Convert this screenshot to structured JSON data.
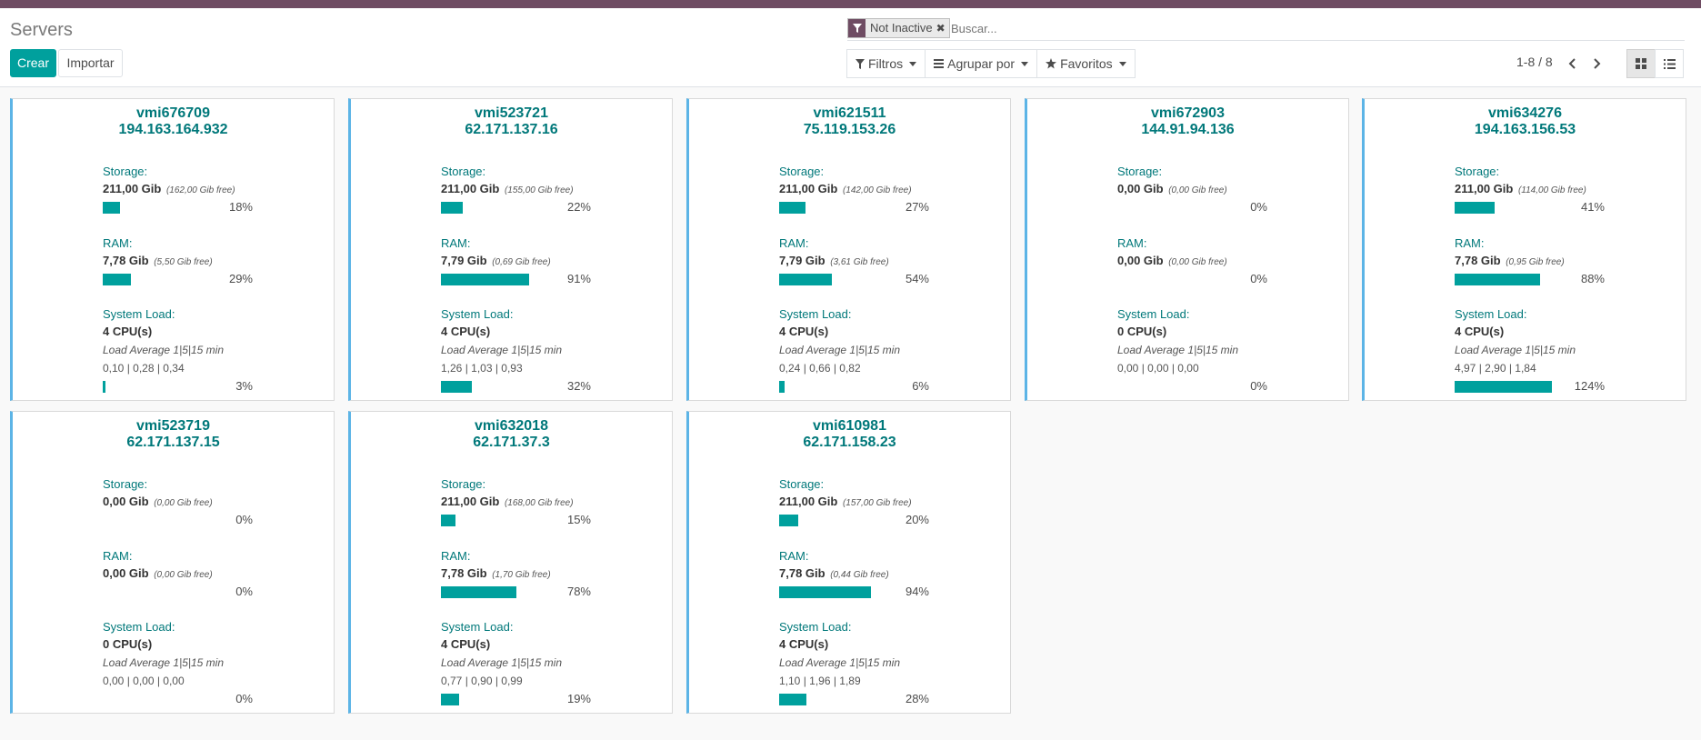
{
  "title": "Servers",
  "buttons": {
    "create": "Crear",
    "import": "Importar"
  },
  "search": {
    "facet": "Not Inactive",
    "placeholder": "Buscar..."
  },
  "filters": {
    "filters": "Filtros",
    "group_by": "Agrupar por",
    "favorites": "Favoritos"
  },
  "pager": {
    "range": "1-8 / 8"
  },
  "labels": {
    "storage": "Storage:",
    "ram": "RAM:",
    "system_load": "System Load:",
    "load_average": "Load Average 1|5|15 min"
  },
  "accent_color": "#00a09d",
  "servers": [
    {
      "name": "vmi676709",
      "ip": "194.163.164.932",
      "storage": "211,00 Gib",
      "storage_free": "(162,00 Gib free)",
      "storage_pct": 18,
      "storage_pct_label": "18%",
      "ram": "7,78 Gib",
      "ram_free": "(5,50 Gib free)",
      "ram_pct": 29,
      "ram_pct_label": "29%",
      "cpus": "4 CPU(s)",
      "load": "0,10 | 0,28 | 0,34",
      "load_pct": 3,
      "load_pct_label": "3%"
    },
    {
      "name": "vmi523721",
      "ip": "62.171.137.16",
      "storage": "211,00 Gib",
      "storage_free": "(155,00 Gib free)",
      "storage_pct": 22,
      "storage_pct_label": "22%",
      "ram": "7,79 Gib",
      "ram_free": "(0,69 Gib free)",
      "ram_pct": 91,
      "ram_pct_label": "91%",
      "cpus": "4 CPU(s)",
      "load": "1,26 | 1,03 | 0,93",
      "load_pct": 32,
      "load_pct_label": "32%"
    },
    {
      "name": "vmi621511",
      "ip": "75.119.153.26",
      "storage": "211,00 Gib",
      "storage_free": "(142,00 Gib free)",
      "storage_pct": 27,
      "storage_pct_label": "27%",
      "ram": "7,79 Gib",
      "ram_free": "(3,61 Gib free)",
      "ram_pct": 54,
      "ram_pct_label": "54%",
      "cpus": "4 CPU(s)",
      "load": "0,24 | 0,66 | 0,82",
      "load_pct": 6,
      "load_pct_label": "6%"
    },
    {
      "name": "vmi672903",
      "ip": "144.91.94.136",
      "storage": "0,00 Gib",
      "storage_free": "(0,00 Gib free)",
      "storage_pct": 0,
      "storage_pct_label": "0%",
      "ram": "0,00 Gib",
      "ram_free": "(0,00 Gib free)",
      "ram_pct": 0,
      "ram_pct_label": "0%",
      "cpus": "0 CPU(s)",
      "load": "0,00 | 0,00 | 0,00",
      "load_pct": 0,
      "load_pct_label": "0%"
    },
    {
      "name": "vmi634276",
      "ip": "194.163.156.53",
      "storage": "211,00 Gib",
      "storage_free": "(114,00 Gib free)",
      "storage_pct": 41,
      "storage_pct_label": "41%",
      "ram": "7,78 Gib",
      "ram_free": "(0,95 Gib free)",
      "ram_pct": 88,
      "ram_pct_label": "88%",
      "cpus": "4 CPU(s)",
      "load": "4,97 | 2,90 | 1,84",
      "load_pct": 124,
      "load_pct_label": "124%"
    },
    {
      "name": "vmi523719",
      "ip": "62.171.137.15",
      "storage": "0,00 Gib",
      "storage_free": "(0,00 Gib free)",
      "storage_pct": 0,
      "storage_pct_label": "0%",
      "ram": "0,00 Gib",
      "ram_free": "(0,00 Gib free)",
      "ram_pct": 0,
      "ram_pct_label": "0%",
      "cpus": "0 CPU(s)",
      "load": "0,00 | 0,00 | 0,00",
      "load_pct": 0,
      "load_pct_label": "0%"
    },
    {
      "name": "vmi632018",
      "ip": "62.171.37.3",
      "storage": "211,00 Gib",
      "storage_free": "(168,00 Gib free)",
      "storage_pct": 15,
      "storage_pct_label": "15%",
      "ram": "7,78 Gib",
      "ram_free": "(1,70 Gib free)",
      "ram_pct": 78,
      "ram_pct_label": "78%",
      "cpus": "4 CPU(s)",
      "load": "0,77 | 0,90 | 0,99",
      "load_pct": 19,
      "load_pct_label": "19%"
    },
    {
      "name": "vmi610981",
      "ip": "62.171.158.23",
      "storage": "211,00 Gib",
      "storage_free": "(157,00 Gib free)",
      "storage_pct": 20,
      "storage_pct_label": "20%",
      "ram": "7,78 Gib",
      "ram_free": "(0,44 Gib free)",
      "ram_pct": 94,
      "ram_pct_label": "94%",
      "cpus": "4 CPU(s)",
      "load": "1,10 | 1,96 | 1,89",
      "load_pct": 28,
      "load_pct_label": "28%"
    }
  ]
}
